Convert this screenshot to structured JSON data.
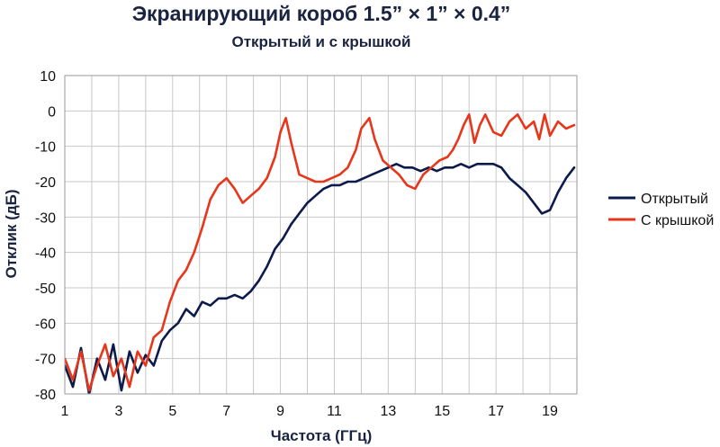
{
  "chart_data": {
    "type": "line",
    "title": "Экранирующий короб 1.5” × 1” × 0.4”",
    "subtitle": "Открытый и с крышкой",
    "xlabel": "Частота (ГГц)",
    "ylabel": "Отклик (дБ)",
    "xlim": [
      1,
      20
    ],
    "ylim": [
      -80,
      10
    ],
    "x_ticks": [
      "1",
      "3",
      "5",
      "7",
      "9",
      "11",
      "13",
      "15",
      "17",
      "19"
    ],
    "y_ticks": [
      "10",
      "0",
      "-10",
      "-20",
      "-30",
      "-40",
      "-50",
      "-60",
      "-70",
      "-80"
    ],
    "grid": true,
    "legend_position": "right",
    "series": [
      {
        "name": "Открытый",
        "color": "#0d1b4c",
        "x": [
          1.0,
          1.3,
          1.6,
          1.9,
          2.2,
          2.5,
          2.8,
          3.1,
          3.4,
          3.7,
          4.0,
          4.3,
          4.6,
          4.9,
          5.2,
          5.5,
          5.8,
          6.1,
          6.4,
          6.7,
          7.0,
          7.3,
          7.6,
          7.9,
          8.2,
          8.5,
          8.8,
          9.1,
          9.4,
          9.7,
          10.0,
          10.3,
          10.6,
          10.9,
          11.2,
          11.5,
          11.8,
          12.1,
          12.4,
          12.7,
          13.0,
          13.3,
          13.6,
          13.9,
          14.2,
          14.5,
          14.8,
          15.1,
          15.4,
          15.7,
          16.0,
          16.3,
          16.6,
          16.9,
          17.2,
          17.5,
          17.8,
          18.1,
          18.4,
          18.7,
          19.0,
          19.3,
          19.6,
          19.9
        ],
        "y": [
          -72,
          -78,
          -67,
          -80,
          -70,
          -76,
          -66,
          -79,
          -68,
          -74,
          -69,
          -72,
          -65,
          -62,
          -60,
          -56,
          -58,
          -54,
          -55,
          -53,
          -53,
          -52,
          -53,
          -51,
          -48,
          -44,
          -39,
          -36,
          -32,
          -29,
          -26,
          -24,
          -22,
          -21,
          -21,
          -20,
          -20,
          -19,
          -18,
          -17,
          -16,
          -15,
          -16,
          -16,
          -17,
          -16,
          -17,
          -16,
          -16,
          -15,
          -16,
          -15,
          -15,
          -15,
          -16,
          -19,
          -21,
          -23,
          -26,
          -29,
          -28,
          -23,
          -19,
          -16
        ]
      },
      {
        "name": "С крышкой",
        "color": "#e8361a",
        "x": [
          1.0,
          1.3,
          1.6,
          1.9,
          2.2,
          2.5,
          2.8,
          3.1,
          3.4,
          3.7,
          4.0,
          4.3,
          4.6,
          4.9,
          5.2,
          5.5,
          5.8,
          6.1,
          6.4,
          6.7,
          7.0,
          7.3,
          7.6,
          7.9,
          8.2,
          8.5,
          8.8,
          9.0,
          9.2,
          9.4,
          9.7,
          10.0,
          10.3,
          10.6,
          10.9,
          11.2,
          11.5,
          11.8,
          12.0,
          12.3,
          12.5,
          12.8,
          13.1,
          13.4,
          13.7,
          14.0,
          14.3,
          14.6,
          14.9,
          15.2,
          15.4,
          15.6,
          15.8,
          16.0,
          16.2,
          16.4,
          16.6,
          16.9,
          17.2,
          17.5,
          17.8,
          18.1,
          18.4,
          18.6,
          18.8,
          19.0,
          19.3,
          19.6,
          19.9
        ],
        "y": [
          -70,
          -76,
          -68,
          -79,
          -72,
          -66,
          -75,
          -70,
          -78,
          -68,
          -72,
          -64,
          -62,
          -54,
          -48,
          -45,
          -40,
          -33,
          -25,
          -21,
          -19,
          -22,
          -26,
          -24,
          -22,
          -19,
          -13,
          -6,
          -2,
          -9,
          -18,
          -19,
          -20,
          -20,
          -19,
          -18,
          -16,
          -11,
          -5,
          -2,
          -8,
          -14,
          -16,
          -18,
          -21,
          -22,
          -18,
          -16,
          -14,
          -13,
          -11,
          -8,
          -4,
          -1,
          -9,
          -4,
          -1,
          -6,
          -7,
          -3,
          -1,
          -5,
          -3,
          -8,
          -1,
          -7,
          -3,
          -5,
          -4
        ]
      }
    ]
  }
}
